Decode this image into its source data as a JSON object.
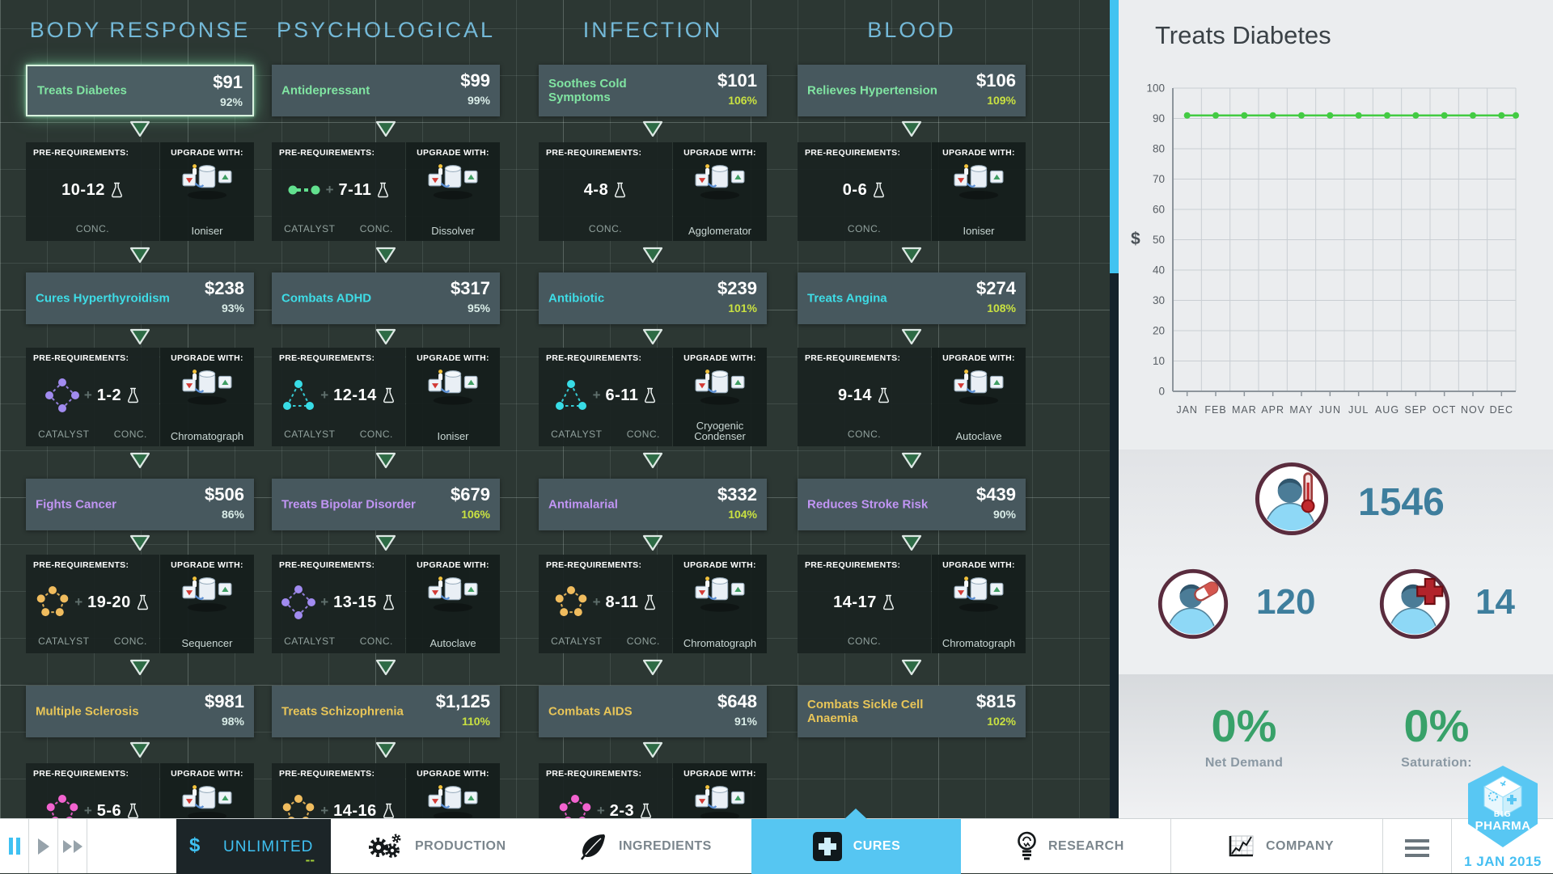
{
  "labels": {
    "prereq": "PRE-REQUIREMENTS:",
    "upgrade": "UPGRADE WITH:",
    "catalyst": "CATALYST",
    "conc": "CONC."
  },
  "tier_colors": [
    "#80e4a2",
    "#3edce6",
    "#c195f4",
    "#e8c558"
  ],
  "columns": [
    {
      "header": "BODY RESPONSE",
      "cures": [
        {
          "name": "Treats Diabetes",
          "price": "$91",
          "percent": "92%",
          "hot": false,
          "selected": true,
          "detail": {
            "catalyst": null,
            "conc": "10-12",
            "machine": "Ioniser"
          }
        },
        {
          "name": "Cures Hyperthyroidism",
          "price": "$238",
          "percent": "93%",
          "hot": false,
          "detail": {
            "catalyst": {
              "shape": "diamond",
              "color": "#a18bf0"
            },
            "conc": "1-2",
            "machine": "Chromatograph"
          }
        },
        {
          "name": "Fights Cancer",
          "price": "$506",
          "percent": "86%",
          "hot": false,
          "detail": {
            "catalyst": {
              "shape": "pentagon",
              "color": "#f0bc5e"
            },
            "conc": "19-20",
            "machine": "Sequencer"
          }
        },
        {
          "name": "Multiple Sclerosis",
          "price": "$981",
          "percent": "98%",
          "hot": false,
          "detail": {
            "catalyst": {
              "shape": "pentagon",
              "color": "#f263cf"
            },
            "conc": "5-6",
            "machine": ""
          }
        }
      ]
    },
    {
      "header": "PSYCHOLOGICAL",
      "cures": [
        {
          "name": "Antidepressant",
          "price": "$99",
          "percent": "99%",
          "hot": false,
          "detail": {
            "catalyst": {
              "shape": "link",
              "color": "#62e08e"
            },
            "conc": "7-11",
            "machine": "Dissolver"
          }
        },
        {
          "name": "Combats ADHD",
          "price": "$317",
          "percent": "95%",
          "hot": false,
          "detail": {
            "catalyst": {
              "shape": "triangle",
              "color": "#38dce6"
            },
            "conc": "12-14",
            "machine": "Ioniser"
          }
        },
        {
          "name": "Treats Bipolar Disorder",
          "price": "$679",
          "percent": "106%",
          "hot": true,
          "detail": {
            "catalyst": {
              "shape": "diamond",
              "color": "#a18bf0"
            },
            "conc": "13-15",
            "machine": "Autoclave"
          }
        },
        {
          "name": "Treats Schizophrenia",
          "price": "$1,125",
          "percent": "110%",
          "hot": true,
          "detail": {
            "catalyst": {
              "shape": "pentagon",
              "color": "#f0bc5e"
            },
            "conc": "14-16",
            "machine": ""
          }
        }
      ]
    },
    {
      "header": "INFECTION",
      "cures": [
        {
          "name": "Soothes Cold Symptoms",
          "price": "$101",
          "percent": "106%",
          "hot": true,
          "detail": {
            "catalyst": null,
            "conc": "4-8",
            "machine": "Agglomerator"
          }
        },
        {
          "name": "Antibiotic",
          "price": "$239",
          "percent": "101%",
          "hot": true,
          "detail": {
            "catalyst": {
              "shape": "triangle",
              "color": "#38dce6"
            },
            "conc": "6-11",
            "machine": "Cryogenic Condenser"
          }
        },
        {
          "name": "Antimalarial",
          "price": "$332",
          "percent": "104%",
          "hot": true,
          "detail": {
            "catalyst": {
              "shape": "pentagon",
              "color": "#f0bc5e"
            },
            "conc": "8-11",
            "machine": "Chromatograph"
          }
        },
        {
          "name": "Combats AIDS",
          "price": "$648",
          "percent": "91%",
          "hot": false,
          "detail": {
            "catalyst": {
              "shape": "pentagon",
              "color": "#f263cf"
            },
            "conc": "2-3",
            "machine": ""
          }
        }
      ]
    },
    {
      "header": "BLOOD",
      "cures": [
        {
          "name": "Relieves Hypertension",
          "price": "$106",
          "percent": "109%",
          "hot": true,
          "detail": {
            "catalyst": null,
            "conc": "0-6",
            "machine": "Ioniser"
          }
        },
        {
          "name": "Treats Angina",
          "price": "$274",
          "percent": "108%",
          "hot": true,
          "detail": {
            "catalyst": null,
            "conc": "9-14",
            "machine": "Autoclave"
          }
        },
        {
          "name": "Reduces Stroke Risk",
          "price": "$439",
          "percent": "90%",
          "hot": false,
          "detail": {
            "catalyst": null,
            "conc": "14-17",
            "machine": "Chromatograph"
          }
        },
        {
          "name": "Combats Sickle Cell Anaemia",
          "price": "$815",
          "percent": "102%",
          "hot": true,
          "detail": null
        }
      ]
    }
  ],
  "right_panel": {
    "title": "Treats Diabetes",
    "stats": [
      {
        "icon": "patient-thermometer",
        "value": "1546"
      },
      {
        "icon": "patient-pill",
        "value": "120"
      },
      {
        "icon": "patient-cross",
        "value": "14"
      }
    ],
    "net_demand_value": "0%",
    "net_demand_label": "Net Demand",
    "saturation_value": "0%",
    "saturation_label": "Saturation:"
  },
  "chart_data": {
    "type": "line",
    "title": "Treats Diabetes",
    "ylabel": "$",
    "ylim": [
      0,
      100
    ],
    "ytick_step": 10,
    "months": [
      "JAN",
      "FEB",
      "MAR",
      "APR",
      "MAY",
      "JUN",
      "JUL",
      "AUG",
      "SEP",
      "OCT",
      "NOV",
      "DEC"
    ],
    "values": [
      91,
      91,
      91,
      91,
      91,
      91,
      91,
      91,
      91,
      91,
      91,
      91
    ],
    "line_color": "#43cb43",
    "grid": true
  },
  "bottom_bar": {
    "money": {
      "symbol": "$",
      "value": "UNLIMITED",
      "delta": "--"
    },
    "tabs": [
      {
        "id": "production",
        "label": "PRODUCTION",
        "active": false
      },
      {
        "id": "ingredients",
        "label": "INGREDIENTS",
        "active": false
      },
      {
        "id": "cures",
        "label": "CURES",
        "active": true
      },
      {
        "id": "research",
        "label": "RESEARCH",
        "active": false
      },
      {
        "id": "company",
        "label": "COMPANY",
        "active": false
      }
    ],
    "date": "1 JAN 2015",
    "logo_line1": "BIG",
    "logo_line2": "PHARMA"
  }
}
